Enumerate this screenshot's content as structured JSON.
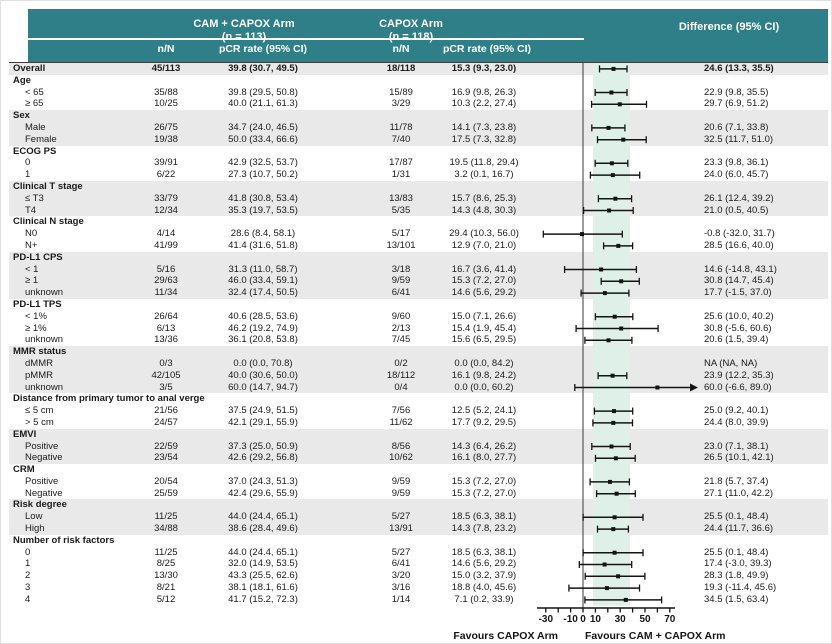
{
  "colors": {
    "teal_header": "#2e7f87",
    "stripe_gray": "#e9e9e9",
    "band_mint": "#dff0e9",
    "line_black": "#141414",
    "header_text": "#ffffff"
  },
  "header": {
    "arm1_title": "CAM + CAPOX Arm",
    "arm1_n": "(n = 113)",
    "arm2_title": "CAPOX Arm",
    "arm2_n": "(n = 118)",
    "nN_label": "n/N",
    "pcr_label": "pCR rate (95% CI)",
    "nN2_label": "n/N",
    "pcr2_label": "pCR rate (95% CI)",
    "difference_label": "Difference (95% CI)"
  },
  "chart_data": {
    "type": "forest",
    "x_axis": {
      "ticks": [
        -30,
        -20,
        -10,
        0,
        10,
        20,
        30,
        40,
        50,
        60,
        70
      ],
      "tick_labels": [
        -30,
        -10,
        0,
        10,
        30,
        50,
        70
      ],
      "range": [
        -38,
        74
      ]
    },
    "shaded_band": [
      8,
      38
    ],
    "favours_left": "Favours CAPOX Arm",
    "favours_right": "Favours CAM + CAPOX Arm",
    "rows": [
      {
        "kind": "overall",
        "label": "Overall",
        "n1": "45/113",
        "p1": "39.8 (30.7, 49.5)",
        "n2": "18/118",
        "p2": "15.3 (9.3, 23.0)",
        "diff": "24.6 (13.3, 35.5)",
        "est": 24.6,
        "lo": 13.3,
        "hi": 35.5
      },
      {
        "kind": "group",
        "label": "Age"
      },
      {
        "kind": "item",
        "label": "< 65",
        "n1": "35/88",
        "p1": "39.8 (29.5, 50.8)",
        "n2": "15/89",
        "p2": "16.9 (9.8, 26.3)",
        "diff": "22.9 (9.8, 35.5)",
        "est": 22.9,
        "lo": 9.8,
        "hi": 35.5
      },
      {
        "kind": "item",
        "label": "≥ 65",
        "n1": "10/25",
        "p1": "40.0 (21.1, 61.3)",
        "n2": "3/29",
        "p2": "10.3 (2.2, 27.4)",
        "diff": "29.7 (6.9, 51.2)",
        "est": 29.7,
        "lo": 6.9,
        "hi": 51.2
      },
      {
        "kind": "group",
        "label": "Sex"
      },
      {
        "kind": "item",
        "label": "Male",
        "n1": "26/75",
        "p1": "34.7 (24.0, 46.5)",
        "n2": "11/78",
        "p2": "14.1 (7.3, 23.8)",
        "diff": "20.6 (7.1, 33.8)",
        "est": 20.6,
        "lo": 7.1,
        "hi": 33.8
      },
      {
        "kind": "item",
        "label": "Female",
        "n1": "19/38",
        "p1": "50.0 (33.4, 66.6)",
        "n2": "7/40",
        "p2": "17.5 (7.3, 32.8)",
        "diff": "32.5 (11.7, 51.0)",
        "est": 32.5,
        "lo": 11.7,
        "hi": 51.0
      },
      {
        "kind": "group",
        "label": "ECOG PS"
      },
      {
        "kind": "item",
        "label": "0",
        "n1": "39/91",
        "p1": "42.9 (32.5, 53.7)",
        "n2": "17/87",
        "p2": "19.5 (11.8, 29.4)",
        "diff": "23.3 (9.8, 36.1)",
        "est": 23.3,
        "lo": 9.8,
        "hi": 36.1
      },
      {
        "kind": "item",
        "label": "1",
        "n1": "6/22",
        "p1": "27.3 (10.7, 50.2)",
        "n2": "1/31",
        "p2": "3.2 (0.1, 16.7)",
        "diff": "24.0 (6.0, 45.7)",
        "est": 24.0,
        "lo": 6.0,
        "hi": 45.7
      },
      {
        "kind": "group",
        "label": "Clinical T stage"
      },
      {
        "kind": "item",
        "label": "≤ T3",
        "n1": "33/79",
        "p1": "41.8 (30.8, 53.4)",
        "n2": "13/83",
        "p2": "15.7 (8.6, 25.3)",
        "diff": "26.1 (12.4, 39.2)",
        "est": 26.1,
        "lo": 12.4,
        "hi": 39.2
      },
      {
        "kind": "item",
        "label": "T4",
        "n1": "12/34",
        "p1": "35.3 (19.7, 53.5)",
        "n2": "5/35",
        "p2": "14.3 (4.8, 30.3)",
        "diff": "21.0 (0.5, 40.5)",
        "est": 21.0,
        "lo": 0.5,
        "hi": 40.5
      },
      {
        "kind": "group",
        "label": "Clinical N stage"
      },
      {
        "kind": "item",
        "label": "N0",
        "n1": "4/14",
        "p1": "28.6 (8.4, 58.1)",
        "n2": "5/17",
        "p2": "29.4 (10.3, 56.0)",
        "diff": "-0.8 (-32.0, 31.7)",
        "est": -0.8,
        "lo": -32.0,
        "hi": 31.7
      },
      {
        "kind": "item",
        "label": "N+",
        "n1": "41/99",
        "p1": "41.4 (31.6, 51.8)",
        "n2": "13/101",
        "p2": "12.9 (7.0, 21.0)",
        "diff": "28.5 (16.6, 40.0)",
        "est": 28.5,
        "lo": 16.6,
        "hi": 40.0
      },
      {
        "kind": "group",
        "label": "PD-L1 CPS"
      },
      {
        "kind": "item",
        "label": "< 1",
        "n1": "5/16",
        "p1": "31.3 (11.0, 58.7)",
        "n2": "3/18",
        "p2": "16.7 (3.6, 41.4)",
        "diff": "14.6 (-14.8, 43.1)",
        "est": 14.6,
        "lo": -14.8,
        "hi": 43.1
      },
      {
        "kind": "item",
        "label": "≥ 1",
        "n1": "29/63",
        "p1": "46.0 (33.4, 59.1)",
        "n2": "9/59",
        "p2": "15.3 (7.2, 27.0)",
        "diff": "30.8 (14.7, 45.4)",
        "est": 30.8,
        "lo": 14.7,
        "hi": 45.4
      },
      {
        "kind": "item",
        "label": "unknown",
        "n1": "11/34",
        "p1": "32.4 (17.4, 50.5)",
        "n2": "6/41",
        "p2": "14.6 (5.6, 29.2)",
        "diff": "17.7 (-1.5, 37.0)",
        "est": 17.7,
        "lo": -1.5,
        "hi": 37.0
      },
      {
        "kind": "group",
        "label": "PD-L1 TPS"
      },
      {
        "kind": "item",
        "label": "< 1%",
        "n1": "26/64",
        "p1": "40.6 (28.5, 53.6)",
        "n2": "9/60",
        "p2": "15.0 (7.1, 26.6)",
        "diff": "25.6 (10.0, 40.2)",
        "est": 25.6,
        "lo": 10.0,
        "hi": 40.2
      },
      {
        "kind": "item",
        "label": "≥ 1%",
        "n1": "6/13",
        "p1": "46.2 (19.2, 74.9)",
        "n2": "2/13",
        "p2": "15.4 (1.9, 45.4)",
        "diff": "30.8 (-5.6, 60.6)",
        "est": 30.8,
        "lo": -5.6,
        "hi": 60.6
      },
      {
        "kind": "item",
        "label": "unknown",
        "n1": "13/36",
        "p1": "36.1 (20.8, 53.8)",
        "n2": "7/45",
        "p2": "15.6 (6.5, 29.5)",
        "diff": "20.6 (1.5, 39.4)",
        "est": 20.6,
        "lo": 1.5,
        "hi": 39.4
      },
      {
        "kind": "group",
        "label": "MMR status"
      },
      {
        "kind": "item",
        "label": "dMMR",
        "n1": "0/3",
        "p1": "0.0 (0.0, 70.8)",
        "n2": "0/2",
        "p2": "0.0 (0.0, 84.2)",
        "diff": "NA (NA, NA)",
        "est": null,
        "lo": null,
        "hi": null
      },
      {
        "kind": "item",
        "label": "pMMR",
        "n1": "42/105",
        "p1": "40.0 (30.6, 50.0)",
        "n2": "18/112",
        "p2": "16.1 (9.8, 24.2)",
        "diff": "23.9 (12.2, 35.3)",
        "est": 23.9,
        "lo": 12.2,
        "hi": 35.3
      },
      {
        "kind": "item",
        "label": "unknown",
        "n1": "3/5",
        "p1": "60.0 (14.7, 94.7)",
        "n2": "0/4",
        "p2": "0.0 (0.0, 60.2)",
        "diff": "60.0 (-6.6, 89.0)",
        "est": 60.0,
        "lo": -6.6,
        "hi": 89.0,
        "arrow": true
      },
      {
        "kind": "group",
        "label": "Distance from primary tumor to anal verge"
      },
      {
        "kind": "item",
        "label": "≤ 5 cm",
        "n1": "21/56",
        "p1": "37.5 (24.9, 51.5)",
        "n2": "7/56",
        "p2": "12.5 (5.2, 24.1)",
        "diff": "25.0 (9.2, 40.1)",
        "est": 25.0,
        "lo": 9.2,
        "hi": 40.1
      },
      {
        "kind": "item",
        "label": "> 5 cm",
        "n1": "24/57",
        "p1": "42.1 (29.1, 55.9)",
        "n2": "11/62",
        "p2": "17.7 (9.2, 29.5)",
        "diff": "24.4 (8.0, 39.9)",
        "est": 24.4,
        "lo": 8.0,
        "hi": 39.9
      },
      {
        "kind": "group",
        "label": "EMVI"
      },
      {
        "kind": "item",
        "label": "Positive",
        "n1": "22/59",
        "p1": "37.3 (25.0, 50.9)",
        "n2": "8/56",
        "p2": "14.3 (6.4, 26.2)",
        "diff": "23.0 (7.1, 38.1)",
        "est": 23.0,
        "lo": 7.1,
        "hi": 38.1
      },
      {
        "kind": "item",
        "label": "Negative",
        "n1": "23/54",
        "p1": "42.6 (29.2, 56.8)",
        "n2": "10/62",
        "p2": "16.1 (8.0, 27.7)",
        "diff": "26.5 (10.1, 42.1)",
        "est": 26.5,
        "lo": 10.1,
        "hi": 42.1
      },
      {
        "kind": "group",
        "label": "CRM"
      },
      {
        "kind": "item",
        "label": "Positive",
        "n1": "20/54",
        "p1": "37.0 (24.3, 51.3)",
        "n2": "9/59",
        "p2": "15.3 (7.2, 27.0)",
        "diff": "21.8 (5.7, 37.4)",
        "est": 21.8,
        "lo": 5.7,
        "hi": 37.4
      },
      {
        "kind": "item",
        "label": "Negative",
        "n1": "25/59",
        "p1": "42.4 (29.6, 55.9)",
        "n2": "9/59",
        "p2": "15.3 (7.2, 27.0)",
        "diff": "27.1 (11.0, 42.2)",
        "est": 27.1,
        "lo": 11.0,
        "hi": 42.2
      },
      {
        "kind": "group",
        "label": "Risk degree"
      },
      {
        "kind": "item",
        "label": "Low",
        "n1": "11/25",
        "p1": "44.0 (24.4, 65.1)",
        "n2": "5/27",
        "p2": "18.5 (6.3, 38.1)",
        "diff": "25.5 (0.1, 48.4)",
        "est": 25.5,
        "lo": 0.1,
        "hi": 48.4
      },
      {
        "kind": "item",
        "label": "High",
        "n1": "34/88",
        "p1": "38.6 (28.4, 49.6)",
        "n2": "13/91",
        "p2": "14.3 (7.8, 23.2)",
        "diff": "24.4 (11.7, 36.6)",
        "est": 24.4,
        "lo": 11.7,
        "hi": 36.6
      },
      {
        "kind": "group",
        "label": "Number of risk factors"
      },
      {
        "kind": "item",
        "label": "0",
        "n1": "11/25",
        "p1": "44.0 (24.4, 65.1)",
        "n2": "5/27",
        "p2": "18.5 (6.3, 38.1)",
        "diff": "25.5 (0.1, 48.4)",
        "est": 25.5,
        "lo": 0.1,
        "hi": 48.4
      },
      {
        "kind": "item",
        "label": "1",
        "n1": "8/25",
        "p1": "32.0 (14.9, 53.5)",
        "n2": "6/41",
        "p2": "14.6 (5.6, 29.2)",
        "diff": "17.4 (-3.0, 39.3)",
        "est": 17.4,
        "lo": -3.0,
        "hi": 39.3
      },
      {
        "kind": "item",
        "label": "2",
        "n1": "13/30",
        "p1": "43.3 (25.5, 62.6)",
        "n2": "3/20",
        "p2": "15.0 (3.2, 37.9)",
        "diff": "28.3 (1.8, 49.9)",
        "est": 28.3,
        "lo": 1.8,
        "hi": 49.9
      },
      {
        "kind": "item",
        "label": "3",
        "n1": "8/21",
        "p1": "38.1 (18.1, 61.6)",
        "n2": "3/16",
        "p2": "18.8 (4.0, 45.6)",
        "diff": "19.3 (-11.4, 45.6)",
        "est": 19.3,
        "lo": -11.4,
        "hi": 45.6
      },
      {
        "kind": "item",
        "label": "4",
        "n1": "5/12",
        "p1": "41.7 (15.2, 72.3)",
        "n2": "1/14",
        "p2": "7.1 (0.2, 33.9)",
        "diff": "34.5 (1.5, 63.4)",
        "est": 34.5,
        "lo": 1.5,
        "hi": 63.4
      }
    ]
  }
}
